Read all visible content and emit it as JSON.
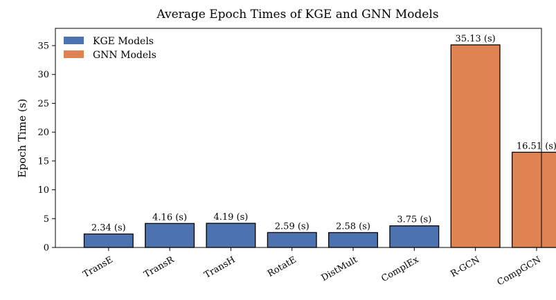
{
  "chart_data": {
    "type": "bar",
    "title": "Average Epoch Times of KGE and GNN Models",
    "xlabel": "",
    "ylabel": "Epoch Time (s)",
    "ylim": [
      0,
      38
    ],
    "yticks": [
      0,
      5,
      10,
      15,
      20,
      25,
      30,
      35
    ],
    "categories": [
      "TransE",
      "TransR",
      "TransH",
      "RotatE",
      "DistMult",
      "ComplEx",
      "R-GCN",
      "CompGCN"
    ],
    "values": [
      2.34,
      4.16,
      4.19,
      2.59,
      2.58,
      3.75,
      35.13,
      16.51
    ],
    "groups": [
      "KGE Models",
      "KGE Models",
      "KGE Models",
      "KGE Models",
      "KGE Models",
      "KGE Models",
      "GNN Models",
      "GNN Models"
    ],
    "data_labels": [
      "2.34 (s)",
      "4.16 (s)",
      "4.19 (s)",
      "2.59 (s)",
      "2.58 (s)",
      "3.75 (s)",
      "35.13 (s)",
      "16.51 (s)"
    ],
    "legend": {
      "placement": "top-left",
      "entries": [
        {
          "name": "KGE Models",
          "color": "#4c72b0"
        },
        {
          "name": "GNN Models",
          "color": "#dd8452"
        }
      ]
    },
    "grid": false
  }
}
